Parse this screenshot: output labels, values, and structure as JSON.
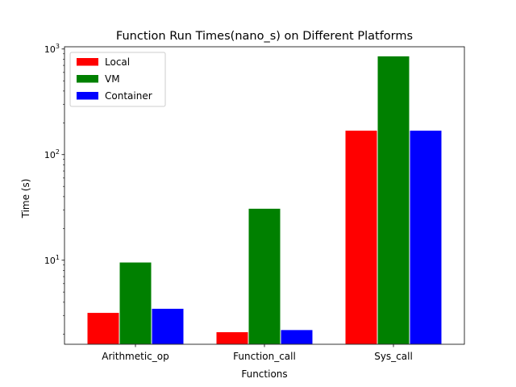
{
  "chart_data": {
    "type": "bar",
    "title": "Function Run Times(nano_s) on Different Platforms",
    "xlabel": "Functions",
    "ylabel": "Time (s)",
    "y_scale": "log",
    "ylim": [
      1.6,
      1050
    ],
    "y_ticks": [
      {
        "value": 10,
        "base": "10",
        "exp": "1"
      },
      {
        "value": 100,
        "base": "10",
        "exp": "2"
      },
      {
        "value": 1000,
        "base": "10",
        "exp": "3"
      }
    ],
    "categories": [
      "Arithmetic_op",
      "Function_call",
      "Sys_call"
    ],
    "series": [
      {
        "name": "Local",
        "color": "#ff0000",
        "values": [
          3.2,
          2.1,
          170
        ]
      },
      {
        "name": "VM",
        "color": "#008000",
        "values": [
          9.6,
          31,
          860
        ]
      },
      {
        "name": "Container",
        "color": "#0000ff",
        "values": [
          3.5,
          2.2,
          170
        ]
      }
    ],
    "grid": false,
    "legend_position": "top-left"
  }
}
